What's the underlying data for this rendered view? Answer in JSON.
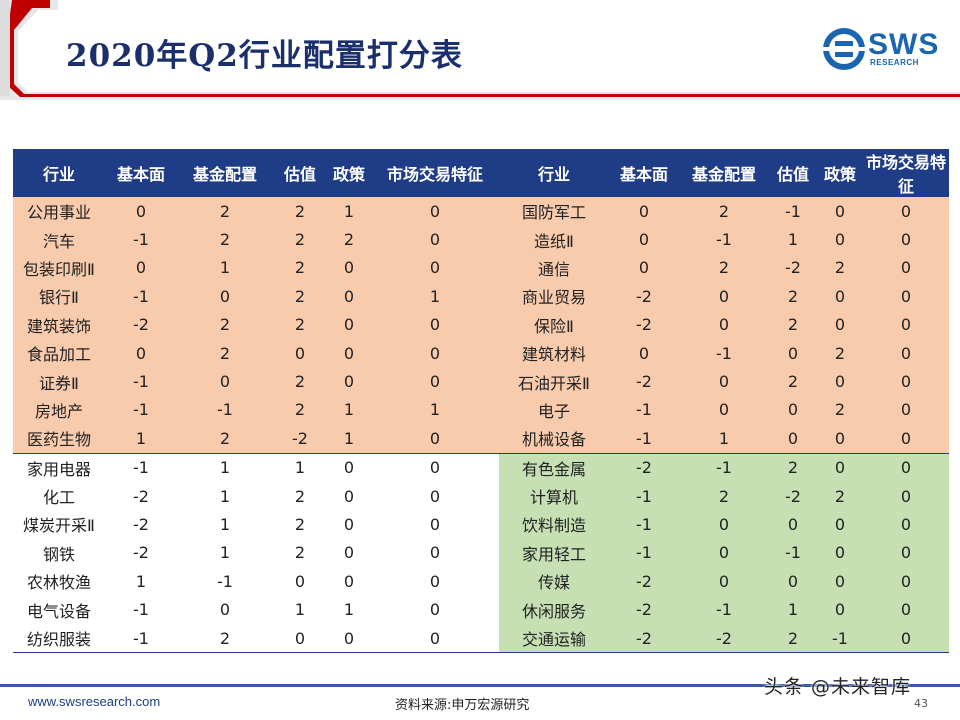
{
  "header": {
    "title": "2020年Q2行业配置打分表",
    "logo_text": "SWS",
    "logo_sub": "RESEARCH"
  },
  "table": {
    "columns": [
      "行业",
      "基本面",
      "基金配置",
      "估值",
      "政策",
      "市场交易特征",
      "行业",
      "基本面",
      "基金配置",
      "估值",
      "政策",
      "市场交易特征"
    ],
    "rows": [
      {
        "left": [
          "公用事业",
          "0",
          "2",
          "2",
          "1",
          "0"
        ],
        "right": [
          "国防军工",
          "0",
          "2",
          "-1",
          "0",
          "0"
        ]
      },
      {
        "left": [
          "汽车",
          "-1",
          "2",
          "2",
          "2",
          "0"
        ],
        "right": [
          "造纸Ⅱ",
          "0",
          "-1",
          "1",
          "0",
          "0"
        ]
      },
      {
        "left": [
          "包装印刷Ⅱ",
          "0",
          "1",
          "2",
          "0",
          "0"
        ],
        "right": [
          "通信",
          "0",
          "2",
          "-2",
          "2",
          "0"
        ]
      },
      {
        "left": [
          "银行Ⅱ",
          "-1",
          "0",
          "2",
          "0",
          "1"
        ],
        "right": [
          "商业贸易",
          "-2",
          "0",
          "2",
          "0",
          "0"
        ]
      },
      {
        "left": [
          "建筑装饰",
          "-2",
          "2",
          "2",
          "0",
          "0"
        ],
        "right": [
          "保险Ⅱ",
          "-2",
          "0",
          "2",
          "0",
          "0"
        ]
      },
      {
        "left": [
          "食品加工",
          "0",
          "2",
          "0",
          "0",
          "0"
        ],
        "right": [
          "建筑材料",
          "0",
          "-1",
          "0",
          "2",
          "0"
        ]
      },
      {
        "left": [
          "证券Ⅱ",
          "-1",
          "0",
          "2",
          "0",
          "0"
        ],
        "right": [
          "石油开采Ⅱ",
          "-2",
          "0",
          "2",
          "0",
          "0"
        ]
      },
      {
        "left": [
          "房地产",
          "-1",
          "-1",
          "2",
          "1",
          "1"
        ],
        "right": [
          "电子",
          "-1",
          "0",
          "0",
          "2",
          "0"
        ]
      },
      {
        "left": [
          "医药生物",
          "1",
          "2",
          "-2",
          "1",
          "0"
        ],
        "right": [
          "机械设备",
          "-1",
          "1",
          "0",
          "0",
          "0"
        ]
      },
      {
        "left": [
          "家用电器",
          "-1",
          "1",
          "1",
          "0",
          "0"
        ],
        "right": [
          "有色金属",
          "-2",
          "-1",
          "2",
          "0",
          "0"
        ]
      },
      {
        "left": [
          "化工",
          "-2",
          "1",
          "2",
          "0",
          "0"
        ],
        "right": [
          "计算机",
          "-1",
          "2",
          "-2",
          "2",
          "0"
        ]
      },
      {
        "left": [
          "煤炭开采Ⅱ",
          "-2",
          "1",
          "2",
          "0",
          "0"
        ],
        "right": [
          "饮料制造",
          "-1",
          "0",
          "0",
          "0",
          "0"
        ]
      },
      {
        "left": [
          "钢铁",
          "-2",
          "1",
          "2",
          "0",
          "0"
        ],
        "right": [
          "家用轻工",
          "-1",
          "0",
          "-1",
          "0",
          "0"
        ]
      },
      {
        "left": [
          "农林牧渔",
          "1",
          "-1",
          "0",
          "0",
          "0"
        ],
        "right": [
          "传媒",
          "-2",
          "0",
          "0",
          "0",
          "0"
        ]
      },
      {
        "left": [
          "电气设备",
          "-1",
          "0",
          "1",
          "1",
          "0"
        ],
        "right": [
          "休闲服务",
          "-2",
          "-1",
          "1",
          "0",
          "0"
        ]
      },
      {
        "left": [
          "纺织服装",
          "-1",
          "2",
          "0",
          "0",
          "0"
        ],
        "right": [
          "交通运输",
          "-2",
          "-2",
          "2",
          "-1",
          "0"
        ]
      }
    ]
  },
  "colors": {
    "header_bg": "#1f3c86",
    "top_group": "#f8cbad",
    "bottom_right_group": "#c6e0b4",
    "title_band_red": "#c00000"
  },
  "footer": {
    "url": "www.swsresearch.com",
    "source": "资料来源:申万宏源研究",
    "page_number": "43",
    "watermark": "头条 @未来智库"
  }
}
